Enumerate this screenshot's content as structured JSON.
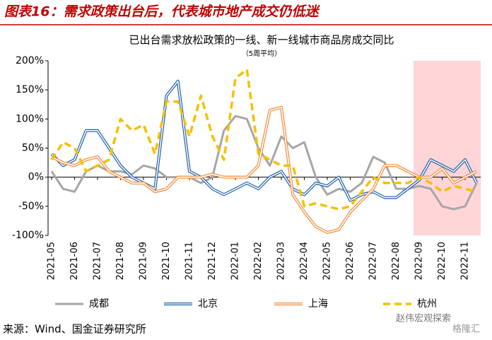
{
  "header": {
    "title": "图表16：需求政策出台后，代表城市地产成交仍低迷"
  },
  "chart_data": {
    "type": "line",
    "title": "已出台需求放松政策的一线、新一线城市商品房成交同比",
    "subtitle": "（5周平均）",
    "categories": [
      "2021-05",
      null,
      "2021-06",
      null,
      "2021-07",
      null,
      "2021-08",
      null,
      "2021-09",
      null,
      "2021-10",
      null,
      "2021-11",
      null,
      "2021-12",
      null,
      "2022-01",
      null,
      "2022-02",
      null,
      "2022-03",
      null,
      "2022-04",
      null,
      "2022-05",
      null,
      "2022-06",
      null,
      "2022-07",
      null,
      "2022-08",
      null,
      "2022-09",
      null,
      "2022-10",
      null,
      "2022-11",
      null
    ],
    "series": [
      {
        "name": "成都",
        "color": "#a6a6a6",
        "style": "solid",
        "values": [
          10,
          -20,
          -25,
          10,
          20,
          10,
          10,
          5,
          20,
          15,
          0,
          0,
          0,
          -10,
          0,
          80,
          105,
          100,
          50,
          20,
          70,
          50,
          60,
          0,
          -30,
          -20,
          -25,
          -10,
          35,
          25,
          -20,
          -20,
          -15,
          -20,
          -50,
          -55,
          -50,
          -10
        ]
      },
      {
        "name": "北京",
        "color": "#1f5fa8",
        "style": "outline",
        "values": [
          40,
          20,
          30,
          80,
          80,
          50,
          20,
          0,
          -10,
          -20,
          140,
          165,
          10,
          0,
          -20,
          -30,
          -20,
          -10,
          -20,
          0,
          10,
          -20,
          -30,
          -10,
          -15,
          0,
          -40,
          -30,
          -25,
          -35,
          -35,
          -20,
          -5,
          30,
          20,
          10,
          30,
          -10
        ]
      },
      {
        "name": "上海",
        "color": "#f08c3c",
        "style": "outline",
        "values": [
          35,
          25,
          20,
          30,
          35,
          10,
          0,
          -10,
          -10,
          -25,
          -20,
          0,
          0,
          0,
          5,
          0,
          0,
          0,
          20,
          115,
          120,
          -30,
          -60,
          -85,
          -95,
          -90,
          -60,
          -40,
          -20,
          20,
          20,
          10,
          0,
          0,
          15,
          -10,
          0,
          10
        ]
      },
      {
        "name": "杭州",
        "color": "#f5c000",
        "style": "dashed",
        "values": [
          30,
          60,
          50,
          10,
          20,
          30,
          100,
          80,
          90,
          40,
          130,
          130,
          70,
          140,
          70,
          30,
          170,
          185,
          40,
          30,
          20,
          20,
          -50,
          -45,
          -50,
          -55,
          -50,
          -25,
          0,
          -10,
          -10,
          -10,
          0,
          -10,
          -25,
          -15,
          -20,
          -25
        ]
      }
    ],
    "ylim": [
      -100,
      200
    ],
    "yticks": [
      {
        "value": -100,
        "label": "-100%"
      },
      {
        "value": -50,
        "label": "-50%"
      },
      {
        "value": 0,
        "label": "0%"
      },
      {
        "value": 50,
        "label": "50%"
      },
      {
        "value": 100,
        "label": "100%"
      },
      {
        "value": 150,
        "label": "150%"
      },
      {
        "value": 200,
        "label": "200%"
      }
    ],
    "legend": "bottom"
  },
  "footer": {
    "source": "来源：Wind、国金证券研究所",
    "watermark": "赵伟宏观探索",
    "watermark2": "格隆汇"
  }
}
